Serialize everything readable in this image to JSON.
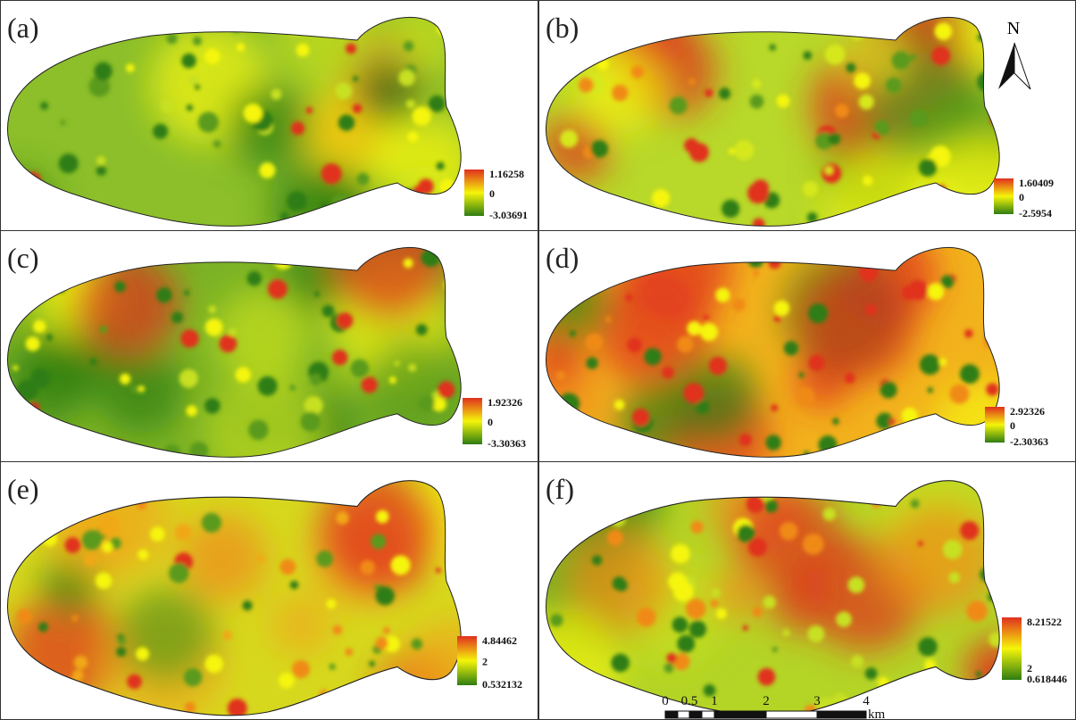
{
  "panels": [
    {
      "label": "(a)",
      "legend": {
        "max": "1.16258",
        "mid": "0",
        "min": "-3.03691"
      }
    },
    {
      "label": "(b)",
      "legend": {
        "max": "1.60409",
        "mid": "0",
        "min": "-2.5954"
      }
    },
    {
      "label": "(c)",
      "legend": {
        "max": "1.92326",
        "mid": "0",
        "min": "-3.30363"
      }
    },
    {
      "label": "(d)",
      "legend": {
        "max": "2.92326",
        "mid": "0",
        "min": "-2.30363"
      }
    },
    {
      "label": "(e)",
      "legend": {
        "max": "4.84462",
        "mid": "2",
        "min": "0.532132"
      }
    },
    {
      "label": "(f)",
      "legend": {
        "max": "8.21522",
        "mid": "2",
        "min": "0.618446"
      }
    }
  ],
  "north": "N",
  "scale_bar": {
    "labels": [
      "0",
      "0.5",
      "1",
      "2",
      "3",
      "4"
    ],
    "unit": "km"
  }
}
